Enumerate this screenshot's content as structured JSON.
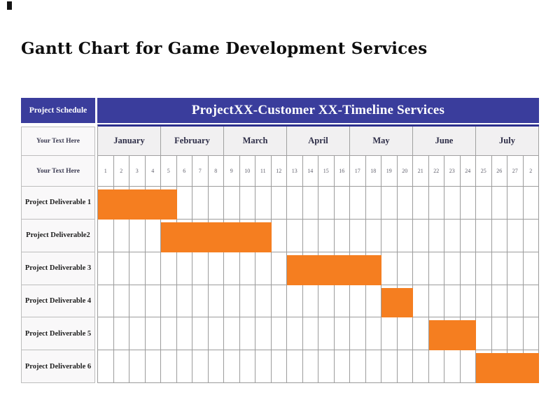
{
  "page": {
    "title": "Gantt Chart for Game Development Services"
  },
  "colors": {
    "header_bg": "#3a3d9c",
    "header_border": "#2c2f8e",
    "bar": "#f57e20",
    "grid_line": "#9c9c9c",
    "month_row_bg": "#f1f0f1",
    "label_cell_bg": "#f9f8f9",
    "header_text": "#ffffff"
  },
  "table": {
    "corner_label": "Project Schedule",
    "header_title": "ProjectXX-Customer XX-Timeline Services",
    "month_row_label": "Your Text Here",
    "day_row_label": "Your Text Here",
    "months": [
      "January",
      "February",
      "March",
      "April",
      "May",
      "June",
      "July"
    ],
    "days": [
      "1",
      "2",
      "3",
      "4",
      "5",
      "6",
      "7",
      "8",
      "9",
      "10",
      "11",
      "12",
      "13",
      "14",
      "15",
      "16",
      "17",
      "18",
      "19",
      "20",
      "21",
      "22",
      "23",
      "24",
      "25",
      "26",
      "27",
      "2"
    ],
    "rows": [
      {
        "label": "Project Deliverable 1",
        "bar_start": 1,
        "bar_span": 5
      },
      {
        "label": "Project Deliverable2",
        "bar_start": 5,
        "bar_span": 7
      },
      {
        "label": "Project Deliverable 3",
        "bar_start": 13,
        "bar_span": 6
      },
      {
        "label": "Project Deliverable 4",
        "bar_start": 19,
        "bar_span": 2
      },
      {
        "label": "Project Deliverable 5",
        "bar_start": 22,
        "bar_span": 3
      },
      {
        "label": "Project Deliverable 6",
        "bar_start": 25,
        "bar_span": 4
      }
    ]
  },
  "chart_data": {
    "type": "bar",
    "subtype": "gantt",
    "title": "ProjectXX-Customer XX-Timeline Services",
    "categories": [
      "Project Deliverable 1",
      "Project Deliverable2",
      "Project Deliverable 3",
      "Project Deliverable 4",
      "Project Deliverable 5",
      "Project Deliverable 6"
    ],
    "series": [
      {
        "name": "Project Deliverable 1",
        "start_day": 1,
        "end_day": 5
      },
      {
        "name": "Project Deliverable2",
        "start_day": 5,
        "end_day": 11
      },
      {
        "name": "Project Deliverable 3",
        "start_day": 13,
        "end_day": 18
      },
      {
        "name": "Project Deliverable 4",
        "start_day": 19,
        "end_day": 20
      },
      {
        "name": "Project Deliverable 5",
        "start_day": 22,
        "end_day": 24
      },
      {
        "name": "Project Deliverable 6",
        "start_day": 25,
        "end_day": 28
      }
    ],
    "x_axis": {
      "month_labels": [
        "January",
        "February",
        "March",
        "April",
        "May",
        "June",
        "July"
      ],
      "day_tick_labels": [
        "1",
        "2",
        "3",
        "4",
        "5",
        "6",
        "7",
        "8",
        "9",
        "10",
        "11",
        "12",
        "13",
        "14",
        "15",
        "16",
        "17",
        "18",
        "19",
        "20",
        "21",
        "22",
        "23",
        "24",
        "25",
        "26",
        "27",
        "2"
      ],
      "days_per_month_column": 4,
      "total_day_columns": 28
    },
    "bar_color": "#f57e20",
    "grid": true,
    "legend": false
  }
}
